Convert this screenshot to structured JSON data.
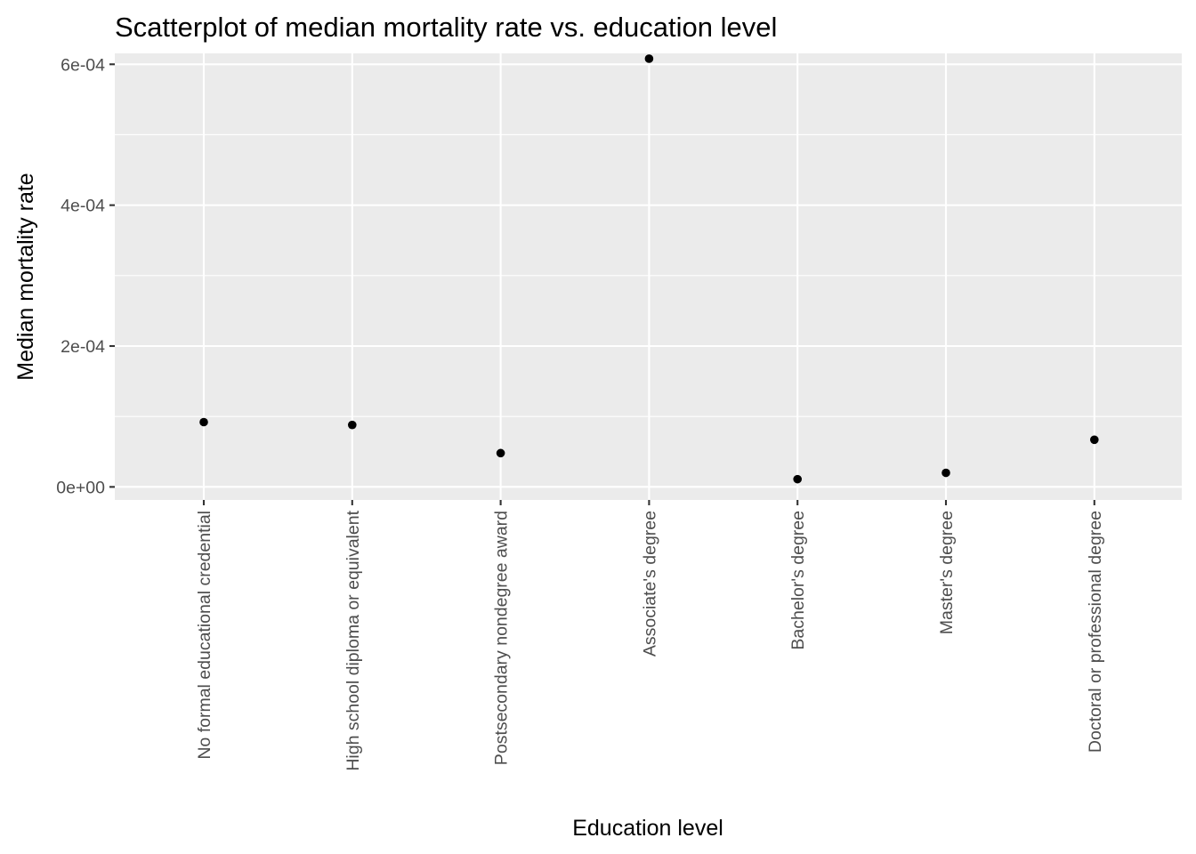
{
  "chart_data": {
    "type": "scatter",
    "title": "Scatterplot of median mortality rate vs. education level",
    "xlabel": "Education level",
    "ylabel": "Median mortality rate",
    "categories": [
      "No formal educational credential",
      "High school diploma or equivalent",
      "Postsecondary nondegree award",
      "Associate's degree",
      "Bachelor's degree",
      "Master's degree",
      "Doctoral or professional degree"
    ],
    "values": [
      9.2e-05,
      8.8e-05,
      4.8e-05,
      0.000608,
      1.1e-05,
      2e-05,
      6.7e-05
    ],
    "y_ticks": [
      0,
      0.0002,
      0.0004,
      0.0006
    ],
    "y_tick_labels": [
      "0e+00",
      "2e-04",
      "4e-04",
      "6e-04"
    ],
    "ylim": [
      -1.85e-05,
      0.0006155
    ],
    "grid": true,
    "colors": {
      "panel": "#ebebeb",
      "grid": "#ffffff",
      "point": "#000000",
      "tick_text": "#4d4d4d"
    }
  }
}
